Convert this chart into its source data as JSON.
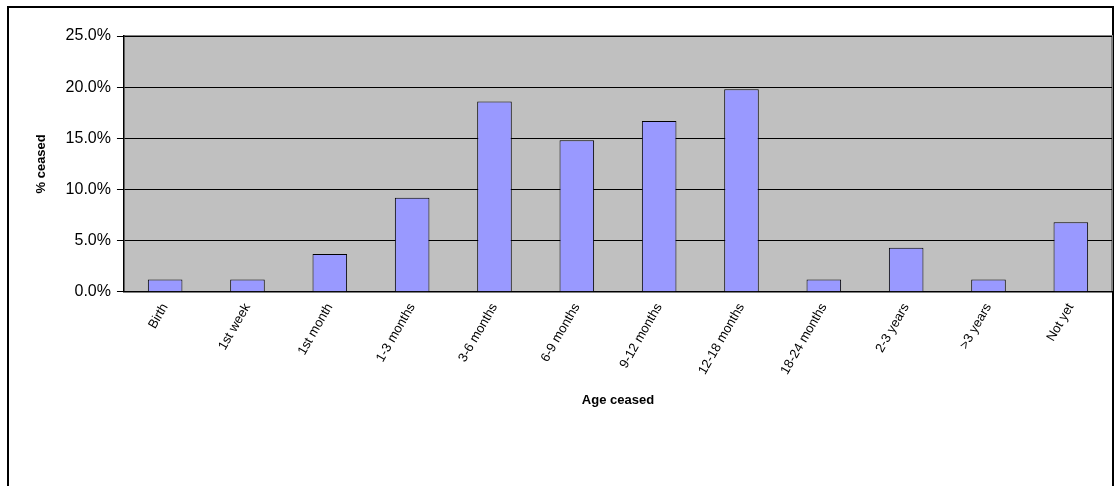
{
  "chart_data": {
    "type": "bar",
    "xlabel": "Age ceased",
    "ylabel": "% ceased",
    "categories": [
      "Birth",
      "1st week",
      "1st month",
      "1-3 months",
      "3-6 months",
      "6-9 months",
      "9-12 months",
      "12-18 months",
      "18-24 months",
      "2-3 years",
      ">3 years",
      "Not yet"
    ],
    "values": [
      1.2,
      1.2,
      3.7,
      9.2,
      18.6,
      14.8,
      16.7,
      19.8,
      1.2,
      4.3,
      1.2,
      6.8
    ],
    "color": "#9999ff",
    "ylim": [
      0,
      25
    ],
    "yticks": [
      {
        "value": 0,
        "label": "0.0%"
      },
      {
        "value": 5,
        "label": "5.0%"
      },
      {
        "value": 10,
        "label": "10.0%"
      },
      {
        "value": 15,
        "label": "15.0%"
      },
      {
        "value": 20,
        "label": "20.0%"
      },
      {
        "value": 25,
        "label": "25.0%"
      }
    ],
    "grid": "y",
    "legend": false
  }
}
